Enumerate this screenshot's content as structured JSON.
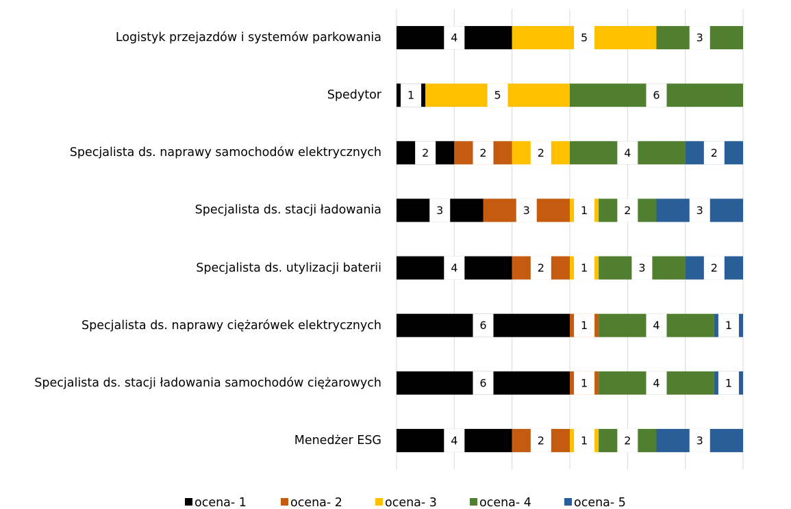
{
  "chart_data": {
    "type": "stacked_barh",
    "categories": [
      "Logistyk przejazdów i systemów parkowania",
      "Spedytor",
      "Specjalista ds. naprawy samochodów elektrycznych",
      "Specjalista ds. stacji ładowania",
      "Specjalista ds. utylizacji baterii",
      "Specjalista ds. naprawy ciężarówek elektrycznych",
      "Specjalista ds. stacji ładowania samochodów ciężarowych",
      "Menedżer ESG"
    ],
    "series": [
      {
        "name": "ocena- 1",
        "color": "#000000",
        "values": [
          4,
          1,
          2,
          3,
          4,
          6,
          6,
          4
        ]
      },
      {
        "name": "ocena- 2",
        "color": "#c55a11",
        "values": [
          0,
          0,
          2,
          3,
          2,
          1,
          1,
          2
        ]
      },
      {
        "name": "ocena- 3",
        "color": "#ffc000",
        "values": [
          5,
          5,
          2,
          1,
          1,
          0,
          0,
          1
        ]
      },
      {
        "name": "ocena- 4",
        "color": "#4f7f2f",
        "values": [
          3,
          6,
          4,
          2,
          3,
          4,
          4,
          2
        ]
      },
      {
        "name": "ocena- 5",
        "color": "#2a5e99",
        "values": [
          0,
          0,
          2,
          3,
          2,
          1,
          1,
          3
        ]
      }
    ],
    "xlim": [
      0,
      12
    ],
    "xticks": [
      0,
      2,
      4,
      6,
      8,
      10,
      12
    ],
    "grid": true,
    "legend": "bottom"
  }
}
